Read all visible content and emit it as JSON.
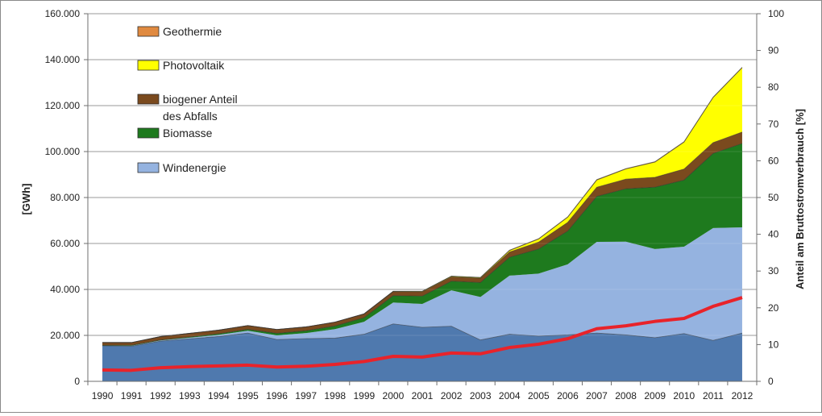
{
  "chart_data": {
    "type": "area",
    "x": [
      "1990",
      "1991",
      "1992",
      "1993",
      "1994",
      "1995",
      "1996",
      "1997",
      "1998",
      "1999",
      "2000",
      "2001",
      "2002",
      "2003",
      "2004",
      "2005",
      "2006",
      "2007",
      "2008",
      "2009",
      "2010",
      "2011",
      "2012"
    ],
    "series": [
      {
        "name": "Windenergie",
        "color": "#95b3e0",
        "values": [
          15500,
          15300,
          17500,
          18500,
          19500,
          21000,
          18200,
          18600,
          18800,
          20500,
          25000,
          23500,
          24000,
          18000,
          20500,
          19700,
          20200,
          21000,
          20200,
          19000,
          20800,
          17800,
          21000
        ]
      },
      {
        "name": "Windenergie",
        "color": "#95b3e0",
        "values": [
          0,
          200,
          300,
          500,
          700,
          1000,
          1800,
          2400,
          3900,
          5400,
          9300,
          10200,
          15600,
          18700,
          25500,
          27200,
          30700,
          39700,
          40600,
          38600,
          37800,
          48900,
          46000
        ]
      },
      {
        "name": "Biomasse",
        "color": "#1e7a1e",
        "values": [
          200,
          200,
          200,
          300,
          500,
          600,
          900,
          1000,
          1400,
          1800,
          3000,
          3400,
          4000,
          6300,
          8000,
          10700,
          14500,
          19800,
          23000,
          26900,
          29000,
          32500,
          36500
        ]
      },
      {
        "name": "biogener Anteil des Abfalls",
        "color": "#7a4a1e",
        "values": [
          1200,
          1200,
          1500,
          1600,
          1600,
          1700,
          1700,
          1700,
          1700,
          1700,
          1800,
          1900,
          1900,
          1900,
          2300,
          3000,
          3800,
          4000,
          4200,
          4300,
          4800,
          4700,
          5000
        ]
      },
      {
        "name": "Photovoltaik",
        "color": "#ffff00",
        "values": [
          0,
          0,
          0,
          0,
          0,
          0,
          0,
          0,
          0,
          0,
          100,
          200,
          300,
          300,
          600,
          1300,
          2200,
          3100,
          4400,
          6600,
          11700,
          19600,
          28000
        ]
      },
      {
        "name": "Geothermie",
        "color": "#e08a40",
        "values": [
          0,
          0,
          0,
          0,
          0,
          0,
          0,
          0,
          0,
          0,
          0,
          0,
          0,
          0,
          200,
          200,
          200,
          200,
          200,
          200,
          200,
          200,
          200
        ]
      }
    ],
    "share_line": {
      "color": "#e8232a",
      "values": [
        3.1,
        3.0,
        3.7,
        4.0,
        4.2,
        4.4,
        3.9,
        4.1,
        4.6,
        5.4,
        6.8,
        6.6,
        7.7,
        7.5,
        9.2,
        10.1,
        11.6,
        14.3,
        15.1,
        16.3,
        17.1,
        20.4,
        22.8
      ]
    },
    "ylabel": "[GWh]",
    "y2label": "Anteil am Bruttostromverbrauch [%]",
    "ylim": [
      0,
      160000
    ],
    "y2lim": [
      0,
      100
    ],
    "y_ticks": [
      "0",
      "20.000",
      "40.000",
      "60.000",
      "80.000",
      "100.000",
      "120.000",
      "140.000",
      "160.000"
    ],
    "y2_ticks": [
      "0",
      "10",
      "20",
      "30",
      "40",
      "50",
      "60",
      "70",
      "80",
      "90",
      "100"
    ],
    "grid": true,
    "legend": {
      "placement": "top-left",
      "entries": [
        {
          "label": "Geothermie",
          "color": "#e08a40"
        },
        {
          "label": "Photovoltaik",
          "color": "#ffff00"
        },
        {
          "label": "biogener Anteil",
          "label2": "des Abfalls",
          "color": "#7a4a1e"
        },
        {
          "label": "Biomasse",
          "color": "#1e7a1e"
        },
        {
          "label": "Windenergie",
          "color": "#95b3e0"
        }
      ]
    },
    "base_color": "#4f79ae"
  }
}
